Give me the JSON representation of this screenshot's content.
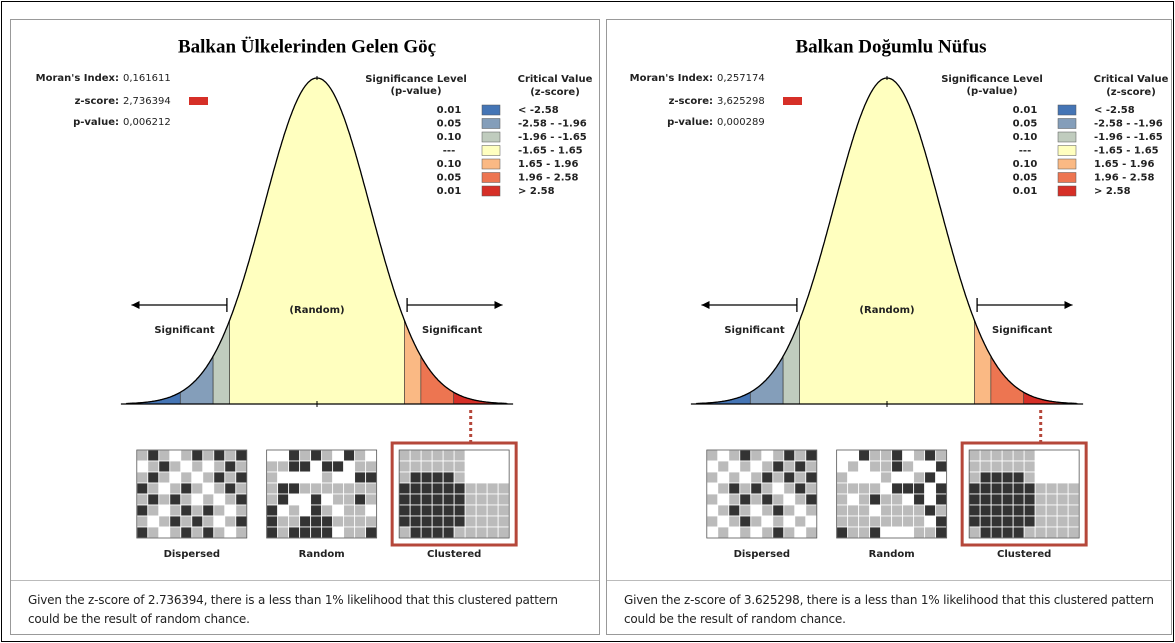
{
  "panels": [
    {
      "title": "Balkan Ülkelerinden Gelen Göç",
      "stats": [
        {
          "label": "Moran's Index:",
          "value": "0,161611"
        },
        {
          "label": "z-score:",
          "value": "2,736394"
        },
        {
          "label": "p-value:",
          "value": "0,006212"
        }
      ],
      "legend": {
        "p_header": [
          "Significance Level",
          "(p-value)"
        ],
        "z_header": [
          "Critical Value",
          "(z-score)"
        ],
        "rows": [
          [
            "0.01",
            "< -2.58"
          ],
          [
            "0.05",
            "-2.58 - -1.96"
          ],
          [
            "0.10",
            "-1.96 - -1.65"
          ],
          [
            "---",
            "-1.65 - 1.65"
          ],
          [
            "0.10",
            "1.65 - 1.96"
          ],
          [
            "0.05",
            "1.96 - 2.58"
          ],
          [
            "0.01",
            "> 2.58"
          ]
        ]
      },
      "curve_labels": {
        "random": "(Random)",
        "significant_left": "Significant",
        "significant_right": "Significant"
      },
      "maps": [
        "Dispersed",
        "Random",
        "Clustered"
      ],
      "summary": [
        "Given the z-score of 2.736394, there is a less than 1% likelihood that this clustered pattern",
        "could be the result of random chance."
      ]
    },
    {
      "title": "Balkan Doğumlu Nüfus",
      "stats": [
        {
          "label": "Moran's Index:",
          "value": "0,257174"
        },
        {
          "label": "z-score:",
          "value": "3,625298"
        },
        {
          "label": "p-value:",
          "value": "0,000289"
        }
      ],
      "legend": {
        "p_header": [
          "Significance Level",
          "(p-value)"
        ],
        "z_header": [
          "Critical Value",
          "(z-score)"
        ],
        "rows": [
          [
            "0.01",
            "< -2.58"
          ],
          [
            "0.05",
            "-2.58 - -1.96"
          ],
          [
            "0.10",
            "-1.96 - -1.65"
          ],
          [
            "---",
            "-1.65 - 1.65"
          ],
          [
            "0.10",
            "1.65 - 1.96"
          ],
          [
            "0.05",
            "1.96 - 2.58"
          ],
          [
            "0.01",
            "> 2.58"
          ]
        ]
      },
      "curve_labels": {
        "random": "(Random)",
        "significant_left": "Significant",
        "significant_right": "Significant"
      },
      "maps": [
        "Dispersed",
        "Random",
        "Clustered"
      ],
      "summary": [
        "Given the z-score of 3.625298, there is a less than 1% likelihood that this clustered pattern",
        "could be the result of random chance."
      ]
    }
  ]
}
